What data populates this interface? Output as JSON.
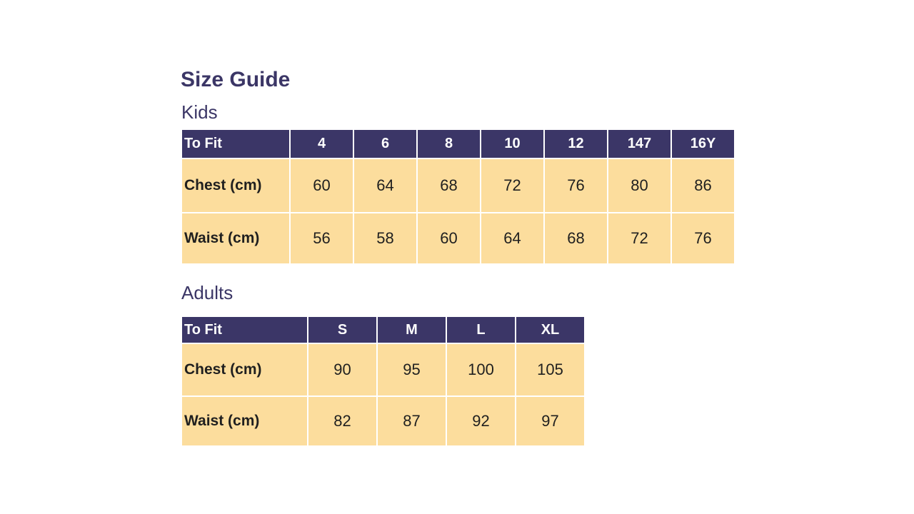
{
  "page": {
    "title": "Size Guide"
  },
  "colors": {
    "header_bg": "#3B3667",
    "row_bg": "#FCDD9D",
    "heading_text": "#3B3666",
    "header_text": "#FFFFFF",
    "body_text": "#1F1F1F"
  },
  "sections": [
    {
      "heading": "Kids",
      "table": {
        "header": [
          "To Fit",
          "4",
          "6",
          "8",
          "10",
          "12",
          "147",
          "16Y"
        ],
        "rows": [
          {
            "label": "Chest (cm)",
            "values": [
              "60",
              "64",
              "68",
              "72",
              "76",
              "80",
              "86"
            ]
          },
          {
            "label": "Waist (cm)",
            "values": [
              "56",
              "58",
              "60",
              "64",
              "68",
              "72",
              "76"
            ]
          }
        ]
      }
    },
    {
      "heading": "Adults",
      "table": {
        "header": [
          "To Fit",
          "S",
          "M",
          "L",
          "XL"
        ],
        "rows": [
          {
            "label": "Chest (cm)",
            "values": [
              "90",
              "95",
              "100",
              "105"
            ]
          },
          {
            "label": "Waist (cm)",
            "values": [
              "82",
              "87",
              "92",
              "97"
            ]
          }
        ]
      }
    }
  ]
}
